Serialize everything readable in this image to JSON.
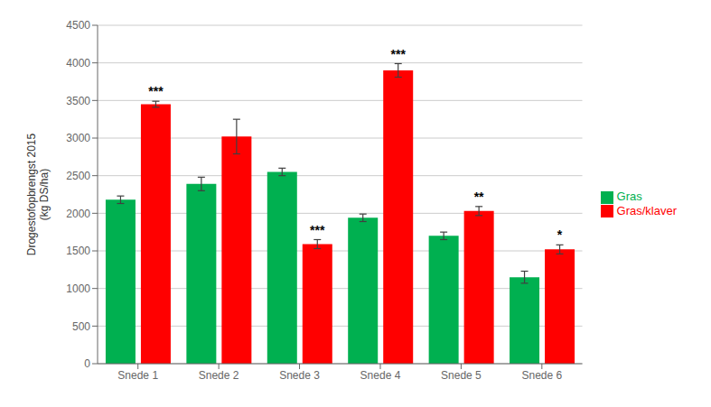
{
  "chart_data": {
    "type": "bar",
    "y_label": "Drogestofopbrengst 2015\n(kg DS/ha)",
    "categories": [
      "Snede 1",
      "Snede 2",
      "Snede 3",
      "Snede 4",
      "Snede 5",
      "Snede 6"
    ],
    "series": [
      {
        "name": "Gras",
        "color": "#00b050",
        "values": [
          2180,
          2390,
          2550,
          1940,
          1700,
          1150
        ],
        "errors": [
          50,
          90,
          50,
          50,
          50,
          80
        ]
      },
      {
        "name": "Gras/klaver",
        "color": "#ff0000",
        "values": [
          3450,
          3020,
          1590,
          3900,
          2030,
          1520
        ],
        "errors": [
          40,
          230,
          60,
          90,
          60,
          60
        ]
      }
    ],
    "annotations": [
      {
        "text": "***",
        "category": "Snede 1",
        "series": "Gras/klaver"
      },
      {
        "text": "***",
        "category": "Snede 3",
        "series": "Gras/klaver"
      },
      {
        "text": "***",
        "category": "Snede 4",
        "series": "Gras/klaver"
      },
      {
        "text": "**",
        "category": "Snede 5",
        "series": "Gras/klaver"
      },
      {
        "text": "*",
        "category": "Snede 6",
        "series": "Gras/klaver"
      }
    ],
    "ylim": [
      0,
      4500
    ],
    "yticks": [
      0,
      500,
      1000,
      1500,
      2000,
      2500,
      3000,
      3500,
      4000,
      4500
    ],
    "grid": true,
    "legend": "right"
  }
}
